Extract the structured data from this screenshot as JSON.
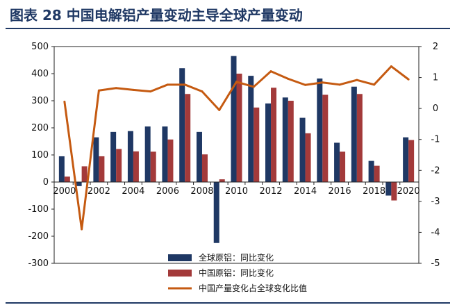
{
  "figure": {
    "title": "图表 28   中国电解铝产量变动主导全球产量变动"
  },
  "chart_data": {
    "type": "bar",
    "x": [
      2000,
      2001,
      2002,
      2003,
      2004,
      2005,
      2006,
      2007,
      2008,
      2009,
      2010,
      2011,
      2012,
      2013,
      2014,
      2015,
      2016,
      2017,
      2018,
      2019,
      2020
    ],
    "x_tick_labels": [
      "2000",
      "2002",
      "2004",
      "2006",
      "2008",
      "2010",
      "2012",
      "2014",
      "2016",
      "2018",
      "2020"
    ],
    "series": [
      {
        "name": "全球原铝：同比变化",
        "type": "bar",
        "axis": "left",
        "color": "#1f3864",
        "values": [
          95,
          -15,
          165,
          185,
          188,
          205,
          205,
          420,
          185,
          -225,
          465,
          392,
          290,
          312,
          237,
          382,
          145,
          352,
          78,
          -50,
          165
        ]
      },
      {
        "name": "中国原铝：同比变化",
        "type": "bar",
        "axis": "left",
        "color": "#a33a3a",
        "values": [
          20,
          58,
          95,
          122,
          113,
          112,
          157,
          325,
          102,
          10,
          400,
          275,
          348,
          300,
          180,
          322,
          112,
          325,
          60,
          -68,
          155
        ]
      },
      {
        "name": "中国产量变化占全球变化比值",
        "type": "line",
        "axis": "right",
        "color": "#c55a11",
        "values": [
          0.22,
          -3.9,
          0.58,
          0.66,
          0.6,
          0.55,
          0.77,
          0.77,
          0.55,
          -0.05,
          0.86,
          0.7,
          1.2,
          0.96,
          0.76,
          0.84,
          0.77,
          0.92,
          0.77,
          1.36,
          0.94
        ]
      }
    ],
    "y_left": {
      "min": -300,
      "max": 500,
      "ticks": [
        "500",
        "400",
        "300",
        "200",
        "100",
        "0",
        "-100",
        "-200",
        "-300"
      ]
    },
    "y_right": {
      "min": -5,
      "max": 2,
      "ticks": [
        "2",
        "1",
        "0",
        "-1",
        "-2",
        "-3",
        "-4",
        "-5"
      ]
    },
    "grid": false,
    "legend_position": "bottom-center"
  }
}
